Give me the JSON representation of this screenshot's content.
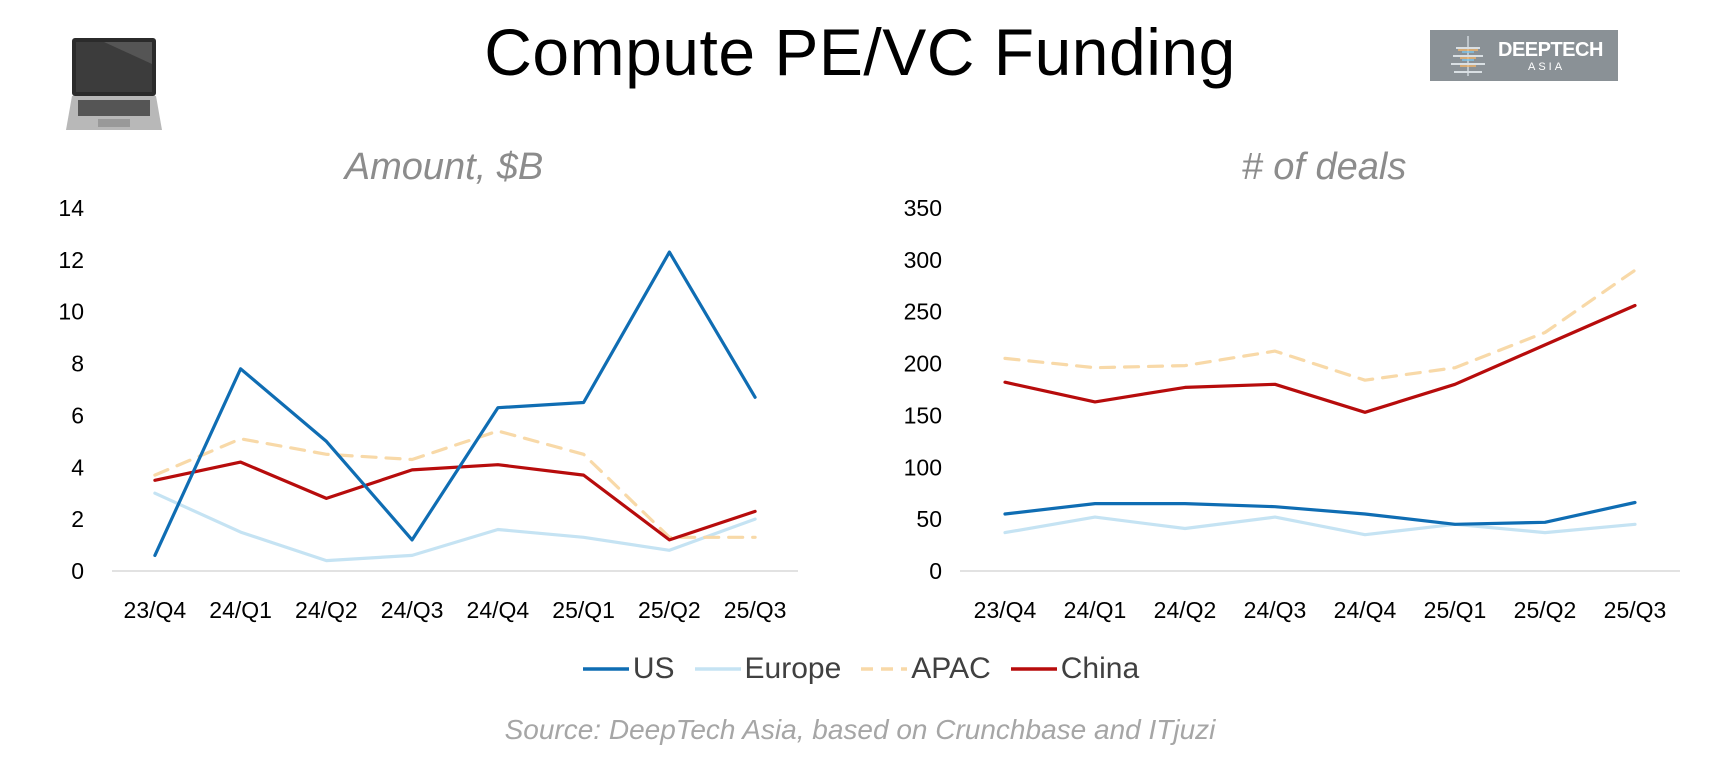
{
  "title": "Compute PE/VC Funding",
  "logo": {
    "line1": "DEEPTECH",
    "line2": "ASIA"
  },
  "icon": "laptop-icon",
  "source": "Source: DeepTech Asia, based on Crunchbase and ITjuzi",
  "legend": [
    {
      "name": "US",
      "color": "#0f6db3",
      "dash": false
    },
    {
      "name": "Europe",
      "color": "#c5e3f3",
      "dash": false
    },
    {
      "name": "APAC",
      "color": "#f8d9a8",
      "dash": true
    },
    {
      "name": "China",
      "color": "#b70c0c",
      "dash": false
    }
  ],
  "chart_data": [
    {
      "type": "line",
      "title": "Amount, $B",
      "categories": [
        "23/Q4",
        "24/Q1",
        "24/Q2",
        "24/Q3",
        "24/Q4",
        "25/Q1",
        "25/Q2",
        "25/Q3"
      ],
      "ylim": [
        0,
        14
      ],
      "yticks": [
        0,
        2,
        4,
        6,
        8,
        10,
        12,
        14
      ],
      "series": [
        {
          "name": "US",
          "values": [
            0.6,
            7.8,
            5.0,
            1.2,
            6.3,
            6.5,
            12.3,
            6.7
          ]
        },
        {
          "name": "Europe",
          "values": [
            3.0,
            1.5,
            0.4,
            0.6,
            1.6,
            1.3,
            0.8,
            2.0
          ]
        },
        {
          "name": "APAC",
          "values": [
            3.7,
            5.1,
            4.5,
            4.3,
            5.4,
            4.5,
            1.3,
            1.3
          ]
        },
        {
          "name": "China",
          "values": [
            3.5,
            4.2,
            2.8,
            3.9,
            4.1,
            3.7,
            1.2,
            2.3
          ]
        }
      ]
    },
    {
      "type": "line",
      "title": "# of deals",
      "categories": [
        "23/Q4",
        "24/Q1",
        "24/Q2",
        "24/Q3",
        "24/Q4",
        "25/Q1",
        "25/Q2",
        "25/Q3"
      ],
      "ylim": [
        0,
        350
      ],
      "yticks": [
        0,
        50,
        100,
        150,
        200,
        250,
        300,
        350
      ],
      "series": [
        {
          "name": "US",
          "values": [
            55,
            65,
            65,
            62,
            55,
            45,
            47,
            66
          ]
        },
        {
          "name": "Europe",
          "values": [
            37,
            52,
            41,
            52,
            35,
            45,
            37,
            45
          ]
        },
        {
          "name": "APAC",
          "values": [
            205,
            196,
            198,
            212,
            184,
            196,
            230,
            290
          ]
        },
        {
          "name": "China",
          "values": [
            182,
            163,
            177,
            180,
            153,
            180,
            218,
            256
          ]
        }
      ]
    }
  ]
}
